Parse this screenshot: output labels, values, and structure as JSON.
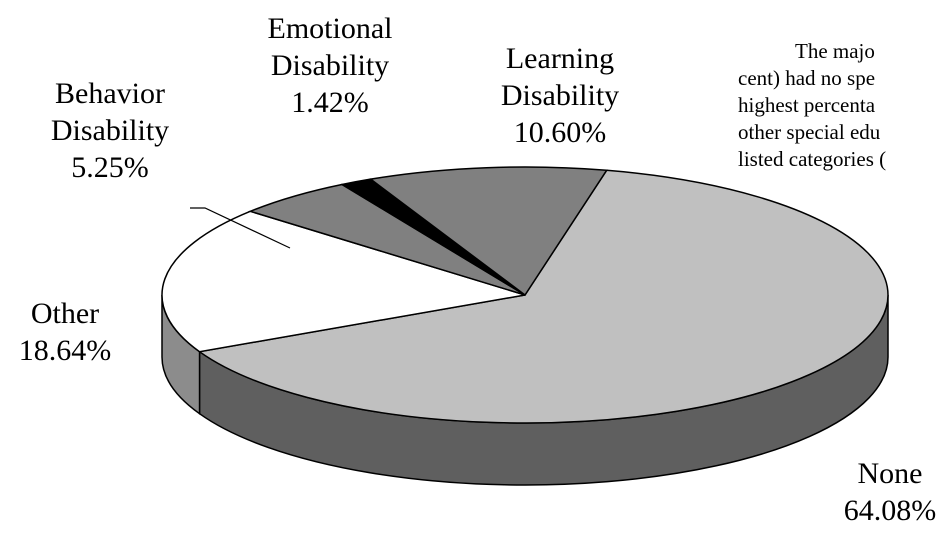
{
  "chart_data": {
    "type": "pie",
    "style": "3d",
    "categories": [
      "None",
      "Other",
      "Behavior Disability",
      "Emotional Disability",
      "Learning Disability"
    ],
    "values": [
      64.08,
      18.64,
      5.25,
      1.42,
      10.6
    ],
    "value_labels": [
      "64.08%",
      "18.64%",
      "5.25%",
      "1.42%",
      "10.60%"
    ],
    "colors": [
      "#c0c0c0",
      "#ffffff",
      "#808080",
      "#000000",
      "#808080"
    ],
    "side_colors": [
      "#5f5f5f",
      "#8c8c8c",
      "#505050",
      "#000000",
      "#505050"
    ]
  },
  "text": {
    "lines": [
      "The majo",
      "cent) had no spe",
      "highest percenta",
      "other special edu",
      "listed categories ("
    ]
  }
}
